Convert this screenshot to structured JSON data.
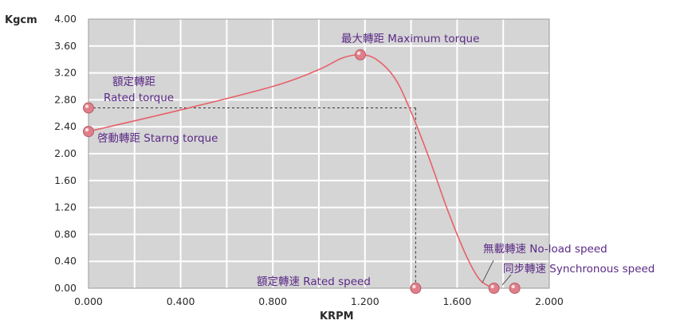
{
  "chart_data": {
    "type": "line",
    "title": "",
    "ylabel": "Kgcm",
    "xlabel": "KRPM",
    "xlim": [
      0,
      2.0
    ],
    "ylim": [
      0,
      4.0
    ],
    "x_ticks": [
      "0.000",
      "0.400",
      "0.800",
      "1.200",
      "1.600",
      "2.000"
    ],
    "y_ticks": [
      "4.00",
      "3.60",
      "3.20",
      "2.80",
      "2.40",
      "2.00",
      "1.60",
      "1.20",
      "0.80",
      "0.40",
      "0.00"
    ],
    "grid": true,
    "colors": {
      "plot_bg": "#d5d5d5",
      "grid": "#ffffff",
      "curve": "#e8606a",
      "marker": "#e07f8a",
      "dashed": "#333333",
      "annotation": "#5b2a86"
    },
    "series": [
      {
        "points": [
          {
            "x": 0.0,
            "y": 2.33
          },
          {
            "x": 0.4,
            "y": 2.65
          },
          {
            "x": 0.8,
            "y": 3.0
          },
          {
            "x": 1.0,
            "y": 3.25
          },
          {
            "x": 1.1,
            "y": 3.42
          },
          {
            "x": 1.18,
            "y": 3.47
          },
          {
            "x": 1.25,
            "y": 3.4
          },
          {
            "x": 1.33,
            "y": 3.12
          },
          {
            "x": 1.4,
            "y": 2.62
          },
          {
            "x": 1.48,
            "y": 1.92
          },
          {
            "x": 1.56,
            "y": 1.15
          },
          {
            "x": 1.64,
            "y": 0.48
          },
          {
            "x": 1.7,
            "y": 0.12
          },
          {
            "x": 1.76,
            "y": 0.0
          }
        ]
      }
    ],
    "markers": [
      {
        "id": "rated-torque",
        "x": 0.0,
        "y": 2.68
      },
      {
        "id": "starting-torque",
        "x": 0.0,
        "y": 2.33
      },
      {
        "id": "maximum-torque",
        "x": 1.18,
        "y": 3.47
      },
      {
        "id": "rated-speed",
        "x": 1.42,
        "y": 0.0
      },
      {
        "id": "no-load-speed",
        "x": 1.76,
        "y": 0.0
      },
      {
        "id": "synchronous-speed",
        "x": 1.85,
        "y": 0.0
      }
    ],
    "reference_lines": {
      "rated_torque_y": 2.68,
      "rated_speed_x": 1.42
    },
    "annotations": {
      "max_torque": "最大轉距 Maximum torque",
      "rated_torque_cn": "額定轉距",
      "rated_torque_en": "Rated torque",
      "starting_torque": "啓動轉距 Starng torque",
      "rated_speed": "額定轉速 Rated speed",
      "no_load_speed": "無載轉速 No-load speed",
      "synchronous_speed": "同步轉速 Synchronous speed"
    }
  }
}
